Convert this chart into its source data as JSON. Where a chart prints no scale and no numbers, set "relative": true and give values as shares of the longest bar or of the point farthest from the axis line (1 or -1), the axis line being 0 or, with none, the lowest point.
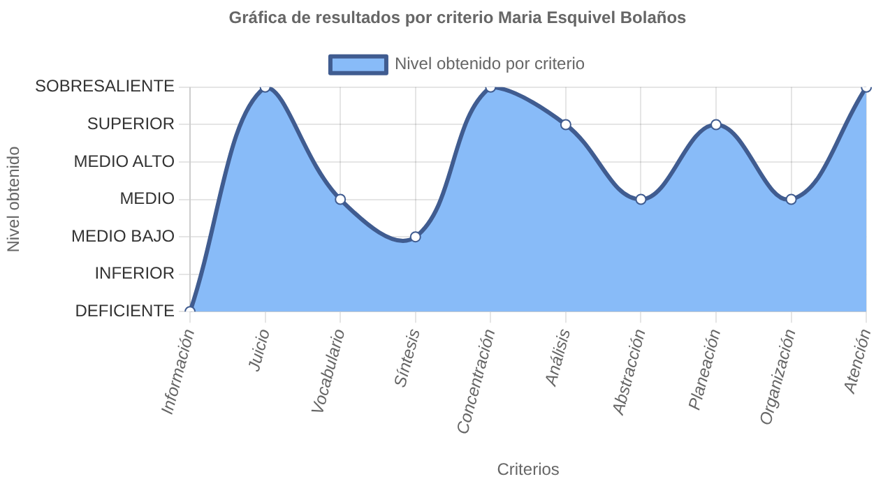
{
  "chart_data": {
    "type": "area",
    "title": "Gráfica de resultados por criterio Maria Esquivel Bolaños",
    "xlabel": "Criterios",
    "annotations": [
      "Nivel obtenido"
    ],
    "categories": [
      "Información",
      "Juicio",
      "Vocabulario",
      "Síntesis",
      "Concentración",
      "Análisis",
      "Abstracción",
      "Planeación",
      "Organización",
      "Atención"
    ],
    "y_categories": [
      "SOBRESALIENTE",
      "SUPERIOR",
      "MEDIO ALTO",
      "MEDIO",
      "MEDIO BAJO",
      "INFERIOR",
      "DEFICIENTE"
    ],
    "relative": true,
    "series": [
      {
        "name": "Nivel obtenido por criterio",
        "color": "#88bbf8",
        "values": [
          0,
          1,
          0.5,
          0.333,
          1,
          0.833,
          0.5,
          0.833,
          0.5,
          1
        ]
      }
    ],
    "grid": true,
    "legend": "top",
    "marker": "circle",
    "line_style": "solid"
  }
}
